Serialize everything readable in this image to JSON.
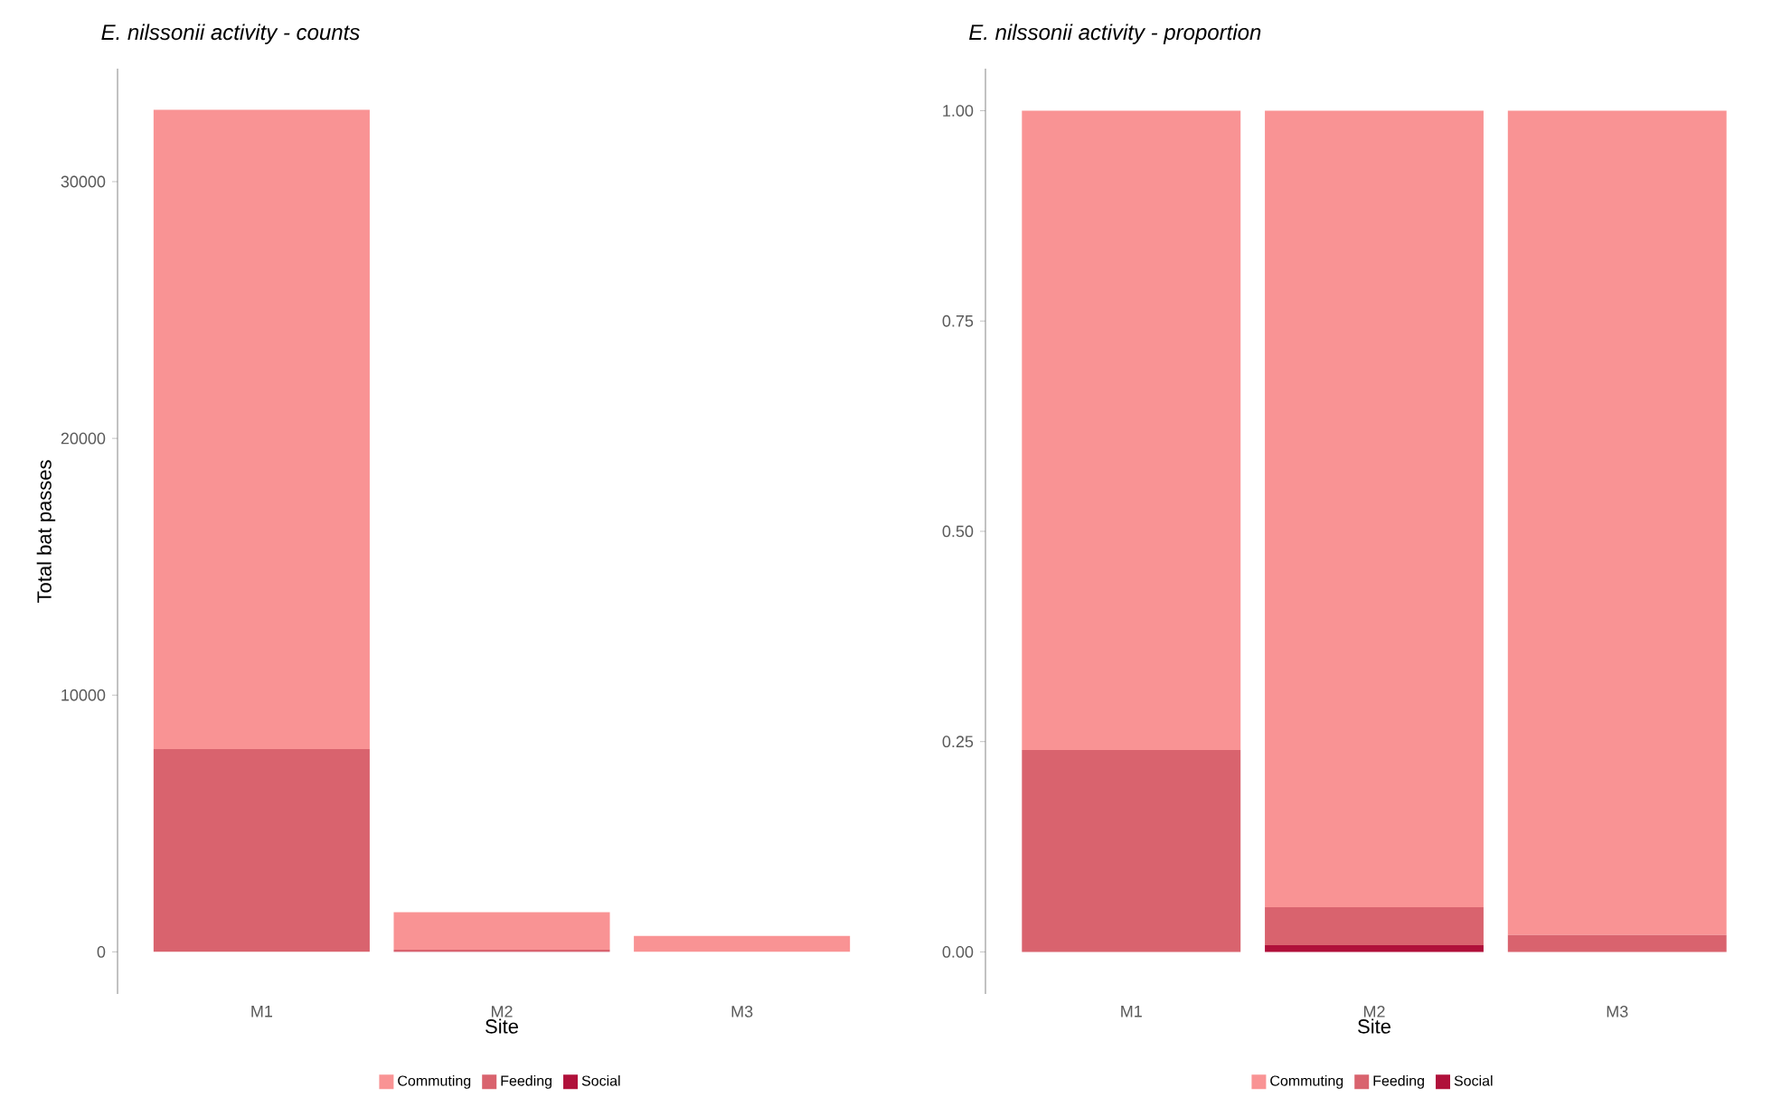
{
  "chart_data": [
    {
      "type": "bar",
      "title": "E. nilssonii activity - counts",
      "xlabel": "Site",
      "ylabel": "Total bat passes",
      "categories": [
        "M1",
        "M2",
        "M3"
      ],
      "stacked": true,
      "legend": "bottom",
      "series": [
        {
          "name": "Social",
          "color": "#b0103a",
          "values": [
            0,
            10,
            0
          ]
        },
        {
          "name": "Feeding",
          "color": "#d9636e",
          "values": [
            7900,
            70,
            null
          ]
        },
        {
          "name": "Commuting",
          "color": "#f99394",
          "values": [
            24900,
            1460,
            620
          ]
        }
      ],
      "ylim": [
        -1640,
        34400
      ],
      "yticks": [
        0,
        10000,
        20000,
        30000
      ]
    },
    {
      "type": "bar",
      "title": "E. nilssonii activity - proportion",
      "xlabel": "Site",
      "categories": [
        "M1",
        "M2",
        "M3"
      ],
      "stacked": true,
      "legend": "bottom",
      "series": [
        {
          "name": "Social",
          "color": "#b0103a",
          "values": [
            0,
            0.008,
            0
          ]
        },
        {
          "name": "Feeding",
          "color": "#d9636e",
          "values": [
            0.24,
            0.045,
            0.02
          ]
        },
        {
          "name": "Commuting",
          "color": "#f99394",
          "values": [
            0.76,
            0.947,
            0.98
          ]
        }
      ],
      "ylim": [
        -0.05,
        1.05
      ],
      "yticks": [
        {
          "value": 0,
          "label": "0.00"
        },
        {
          "value": 0.25,
          "label": "0.25"
        },
        {
          "value": 0.5,
          "label": "0.50"
        },
        {
          "value": 0.75,
          "label": "0.75"
        },
        {
          "value": 1,
          "label": "1.00"
        }
      ]
    }
  ]
}
